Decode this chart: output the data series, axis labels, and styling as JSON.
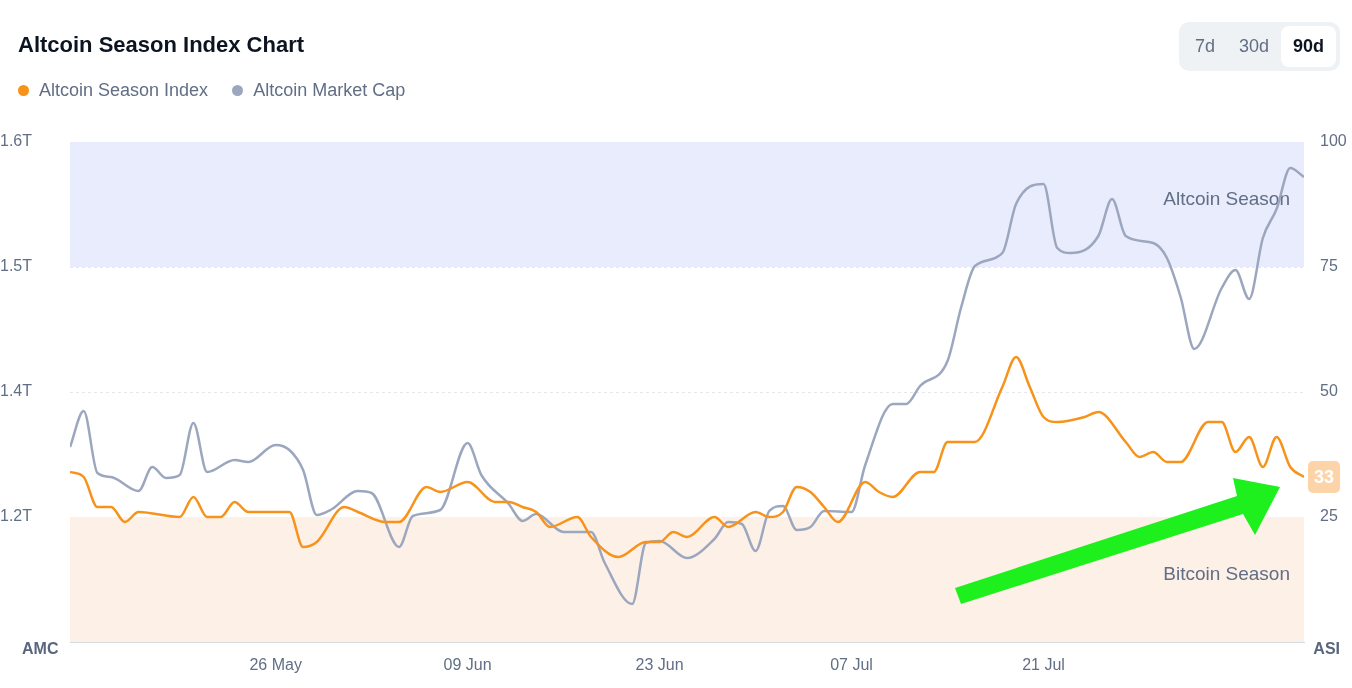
{
  "chart_data": {
    "type": "line",
    "title": "Altcoin Season Index Chart",
    "ylabel": "AMC",
    "y2label": "ASI",
    "legend": "top left",
    "grid": "y",
    "annotations": [
      "7d",
      "30d",
      "90d"
    ],
    "xlim": [
      "--05-11",
      "--08-09"
    ],
    "xticks": [
      {
        "value": "--05-26",
        "label": "26 May"
      },
      {
        "value": "--06-09",
        "label": "09 Jun"
      },
      {
        "value": "--06-23",
        "label": "23 Jun"
      },
      {
        "value": "--07-07",
        "label": "07 Jul"
      },
      {
        "value": "--07-21",
        "label": "21 Jul"
      }
    ],
    "ylim": [
      1.1,
      1.6
    ],
    "yticks": [
      {
        "value": 1.225,
        "label": "1.2T"
      },
      {
        "value": 1.35,
        "label": "1.4T"
      },
      {
        "value": 1.475,
        "label": "1.5T"
      },
      {
        "value": 1.6,
        "label": "1.6T"
      }
    ],
    "y2lim": [
      0,
      100
    ],
    "y2ticks": [
      25,
      50,
      75,
      100
    ],
    "bands": [
      {
        "axis": "y2",
        "from": 75,
        "to": 100,
        "label": "Altcoin Season",
        "color": "#e9ecfd"
      },
      {
        "axis": "y2",
        "from": 0,
        "to": 25,
        "label": "Bitcoin Season",
        "color": "#fdf1e7"
      }
    ],
    "series": [
      {
        "name": "Altcoin Season Index",
        "color": "#f7931a",
        "axis": "y2",
        "x": [
          "--05-11",
          "--05-12",
          "--05-13",
          "--05-14",
          "--05-15",
          "--05-16",
          "--05-19",
          "--05-20",
          "--05-21",
          "--05-22",
          "--05-23",
          "--05-24",
          "--05-27",
          "--05-28",
          "--05-29",
          "--05-31",
          "--06-01",
          "--06-03",
          "--06-04",
          "--06-06",
          "--06-07",
          "--06-09",
          "--06-11",
          "--06-12",
          "--06-13",
          "--06-14",
          "--06-15",
          "--06-17",
          "--06-18",
          "--06-20",
          "--06-22",
          "--06-23",
          "--06-24",
          "--06-25",
          "--06-27",
          "--06-28",
          "--06-30",
          "--07-01",
          "--07-02",
          "--07-03",
          "--07-04",
          "--07-05",
          "--07-06",
          "--07-08",
          "--07-09",
          "--07-10",
          "--07-12",
          "--07-13",
          "--07-14",
          "--07-16",
          "--07-18",
          "--07-19",
          "--07-20",
          "--07-21",
          "--07-22",
          "--07-24",
          "--07-25",
          "--07-27",
          "--07-28",
          "--07-29",
          "--07-30",
          "--07-31",
          "--08-02",
          "--08-03",
          "--08-04",
          "--08-05",
          "--08-06",
          "--08-07",
          "--08-08",
          "--08-09"
        ],
        "values": [
          34,
          33,
          27,
          27,
          24,
          26,
          25,
          29,
          25,
          25,
          28,
          26,
          26,
          19,
          20,
          27,
          26,
          24,
          24,
          31,
          30,
          32,
          28,
          28,
          27,
          26,
          23,
          25,
          21,
          17,
          20,
          20,
          22,
          21,
          25,
          23,
          26,
          25,
          26,
          31,
          30,
          27,
          24,
          32,
          30,
          29,
          34,
          34,
          40,
          40,
          51,
          57,
          51,
          45,
          44,
          45,
          46,
          40,
          37,
          38,
          36,
          36,
          44,
          44,
          38,
          41,
          35,
          41,
          35,
          33
        ],
        "value_labels": [
          null,
          null,
          null,
          null,
          null,
          null,
          null,
          null,
          null,
          null,
          null,
          null,
          null,
          null,
          null,
          null,
          null,
          null,
          null,
          null,
          null,
          null,
          null,
          null,
          null,
          null,
          null,
          null,
          null,
          null,
          null,
          null,
          null,
          null,
          null,
          null,
          null,
          null,
          null,
          null,
          null,
          null,
          null,
          null,
          null,
          null,
          null,
          null,
          null,
          null,
          null,
          null,
          null,
          null,
          null,
          null,
          null,
          null,
          null,
          null,
          null,
          null,
          null,
          null,
          null,
          null,
          null,
          null,
          null,
          "33"
        ]
      },
      {
        "name": "Altcoin Market Cap",
        "color": "#9ca7bf",
        "x": [
          "--05-11",
          "--05-12",
          "--05-13",
          "--05-14",
          "--05-16",
          "--05-17",
          "--05-18",
          "--05-19",
          "--05-20",
          "--05-21",
          "--05-23",
          "--05-24",
          "--05-26",
          "--05-27",
          "--05-28",
          "--05-29",
          "--05-30",
          "--06-01",
          "--06-02",
          "--06-04",
          "--06-05",
          "--06-07",
          "--06-09",
          "--06-10",
          "--06-12",
          "--06-13",
          "--06-14",
          "--06-16",
          "--06-18",
          "--06-19",
          "--06-21",
          "--06-22",
          "--06-23",
          "--06-25",
          "--06-27",
          "--06-28",
          "--06-29",
          "--06-30",
          "--07-01",
          "--07-02",
          "--07-03",
          "--07-04",
          "--07-05",
          "--07-07",
          "--07-08",
          "--07-10",
          "--07-11",
          "--07-12",
          "--07-14",
          "--07-15",
          "--07-16",
          "--07-18",
          "--07-19",
          "--07-21",
          "--07-22",
          "--07-23",
          "--07-25",
          "--07-26",
          "--07-27",
          "--07-29",
          "--07-30",
          "--07-31",
          "--08-01",
          "--08-03",
          "--08-04",
          "--08-05",
          "--08-06",
          "--08-07",
          "--08-08",
          "--08-09"
        ],
        "values": [
          1.295,
          1.331,
          1.269,
          1.265,
          1.251,
          1.275,
          1.264,
          1.267,
          1.319,
          1.27,
          1.282,
          1.28,
          1.297,
          1.292,
          1.272,
          1.227,
          1.232,
          1.251,
          1.249,
          1.195,
          1.226,
          1.232,
          1.299,
          1.267,
          1.238,
          1.221,
          1.228,
          1.21,
          1.21,
          1.179,
          1.138,
          1.199,
          1.201,
          1.184,
          1.203,
          1.22,
          1.218,
          1.191,
          1.231,
          1.236,
          1.212,
          1.215,
          1.231,
          1.23,
          1.277,
          1.338,
          1.338,
          1.356,
          1.381,
          1.435,
          1.476,
          1.489,
          1.538,
          1.558,
          1.494,
          1.489,
          1.506,
          1.543,
          1.506,
          1.499,
          1.484,
          1.445,
          1.393,
          1.454,
          1.472,
          1.443,
          1.504,
          1.533,
          1.574,
          1.565
        ]
      }
    ]
  }
}
